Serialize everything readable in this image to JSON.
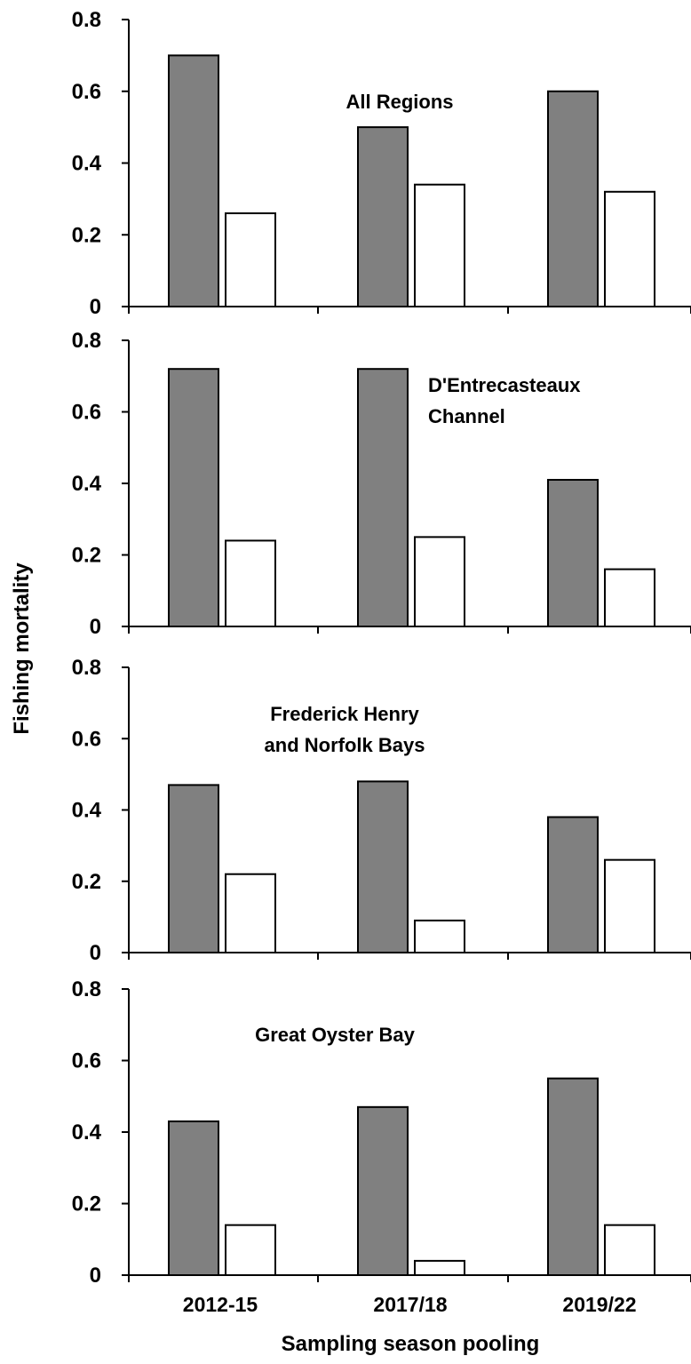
{
  "chart_data": {
    "type": "bar",
    "layout": "four vertically stacked panels sharing the x axis",
    "ylabel": "Fishing mortality",
    "xlabel": "Sampling season pooling",
    "categories": [
      "2012-15",
      "2017/18",
      "2019/22"
    ],
    "ylim": [
      0,
      0.8
    ],
    "yticks": [
      "0",
      "0.2",
      "0.4",
      "0.6",
      "0.8"
    ],
    "grid": false,
    "legend": "none",
    "colors": {
      "series1": "#808080",
      "series2": "#ffffff",
      "outline": "#000000"
    },
    "panels": [
      {
        "title_lines": [
          "All Regions"
        ],
        "series": [
          {
            "values": [
              0.7,
              0.5,
              0.6
            ]
          },
          {
            "values": [
              0.26,
              0.34,
              0.32
            ]
          }
        ]
      },
      {
        "title_lines": [
          "D'Entrecasteaux",
          "Channel"
        ],
        "series": [
          {
            "values": [
              0.72,
              0.72,
              0.41
            ]
          },
          {
            "values": [
              0.24,
              0.25,
              0.16
            ]
          }
        ]
      },
      {
        "title_lines": [
          "Frederick Henry",
          "and Norfolk Bays"
        ],
        "series": [
          {
            "values": [
              0.47,
              0.48,
              0.38
            ]
          },
          {
            "values": [
              0.22,
              0.09,
              0.26
            ]
          }
        ]
      },
      {
        "title_lines": [
          "Great Oyster Bay"
        ],
        "series": [
          {
            "values": [
              0.43,
              0.47,
              0.55
            ]
          },
          {
            "values": [
              0.14,
              0.04,
              0.14
            ]
          }
        ]
      }
    ]
  }
}
